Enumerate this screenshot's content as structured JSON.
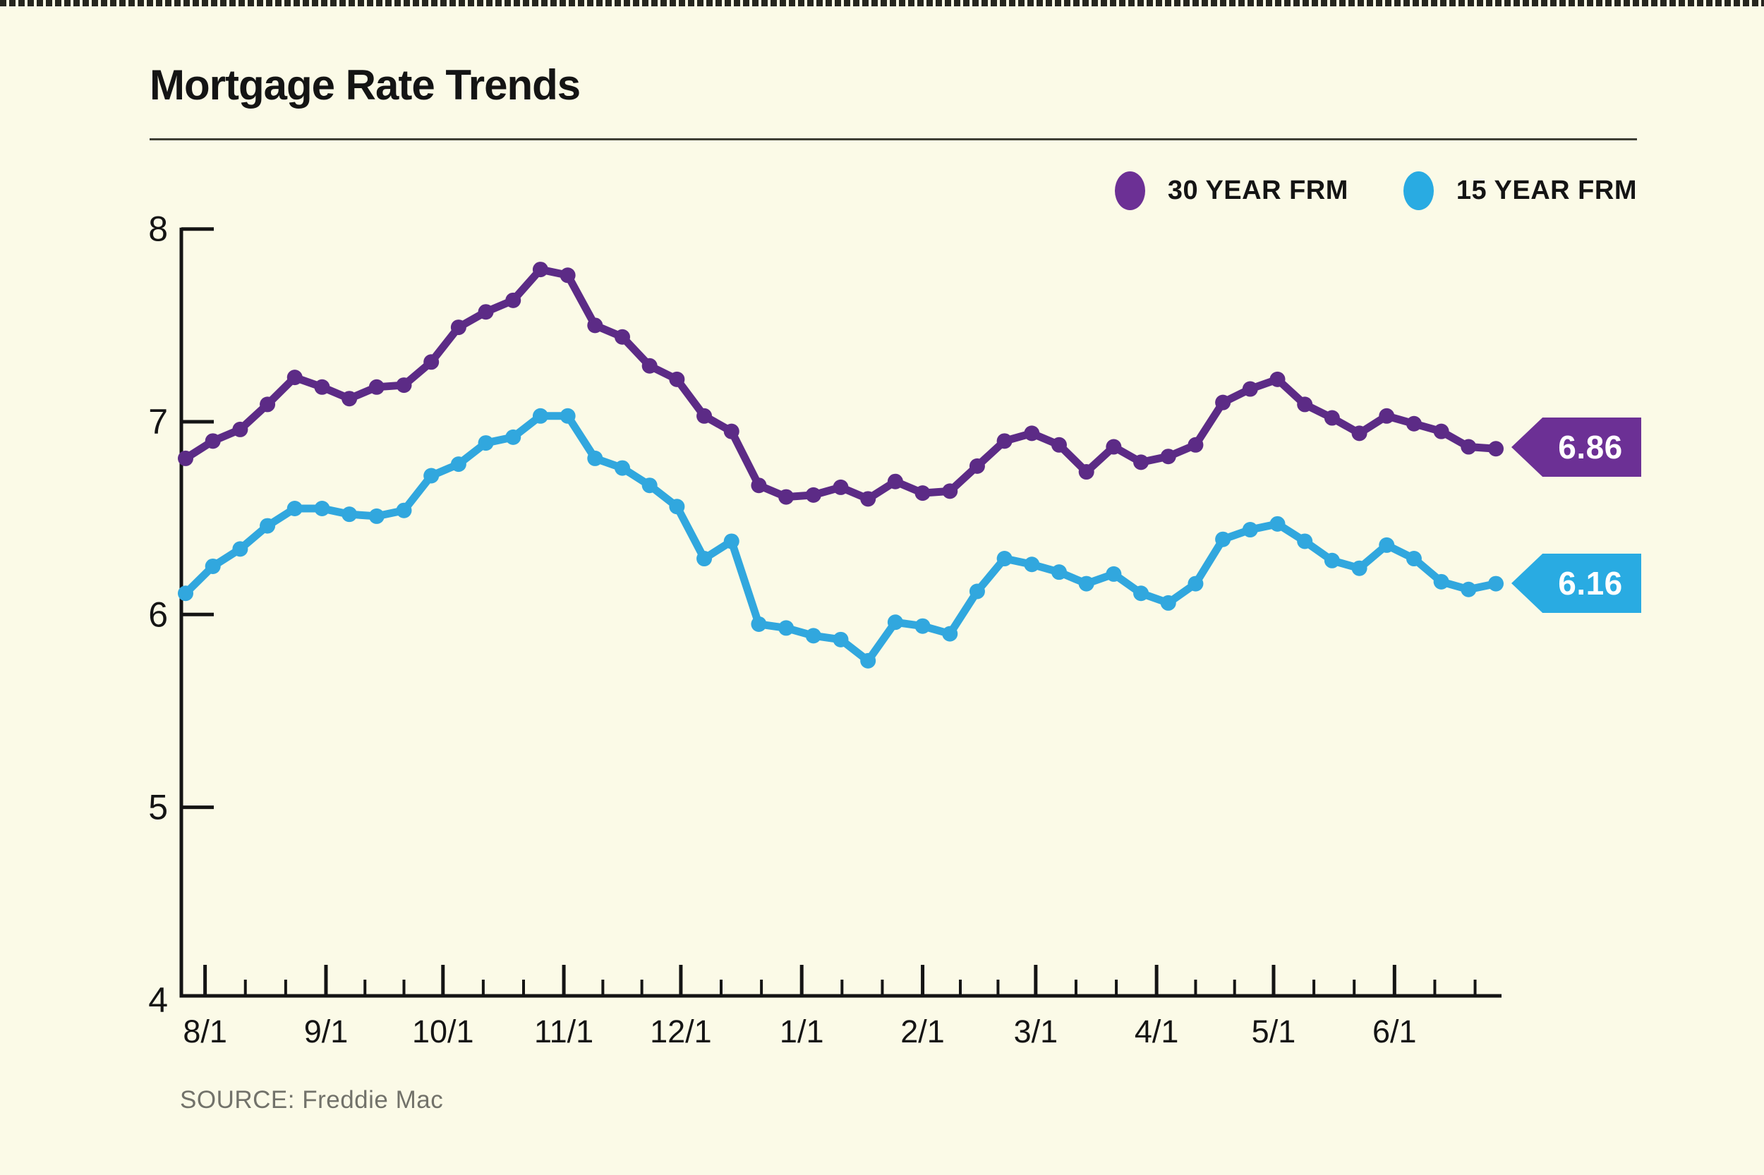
{
  "page": {
    "background_color": "#fbfae7"
  },
  "header": {
    "title": "Mortgage Rate Trends"
  },
  "legend": {
    "items": [
      {
        "label": "30 YEAR FRM",
        "color": "#6c3095"
      },
      {
        "label": "15 YEAR FRM",
        "color": "#29abe2"
      }
    ]
  },
  "callouts": [
    {
      "label": "6.86",
      "color": "#6c3095"
    },
    {
      "label": "6.16",
      "color": "#29abe2"
    }
  ],
  "source": "SOURCE: Freddie Mac",
  "chart_data": {
    "type": "line",
    "title": "Mortgage Rate Trends",
    "xlabel": "",
    "ylabel": "",
    "ylim": [
      4,
      8
    ],
    "grid": false,
    "legend_position": "top-right",
    "y_tick_labels": [
      "8",
      "7",
      "6",
      "5",
      "4"
    ],
    "y_tick_values": [
      8,
      7,
      6,
      5,
      4
    ],
    "x_tick_labels": [
      "8/1",
      "9/1",
      "10/1",
      "11/1",
      "12/1",
      "1/1",
      "2/1",
      "3/1",
      "4/1",
      "5/1",
      "6/1"
    ],
    "x_tick_week_offsets": [
      0.714,
      5.143,
      9.429,
      13.857,
      18.143,
      22.571,
      27.0,
      31.143,
      35.571,
      39.857,
      44.286
    ],
    "x_unit": "weekly observations, late July through late June",
    "series": [
      {
        "name": "30 YEAR FRM",
        "color": "#5c2b86",
        "end_label": "6.86",
        "values": [
          6.81,
          6.9,
          6.96,
          7.09,
          7.23,
          7.18,
          7.12,
          7.18,
          7.19,
          7.31,
          7.49,
          7.57,
          7.63,
          7.79,
          7.76,
          7.5,
          7.44,
          7.29,
          7.22,
          7.03,
          6.95,
          6.67,
          6.61,
          6.62,
          6.66,
          6.6,
          6.69,
          6.63,
          6.64,
          6.77,
          6.9,
          6.94,
          6.88,
          6.74,
          6.87,
          6.79,
          6.82,
          6.88,
          7.1,
          7.17,
          7.22,
          7.09,
          7.02,
          6.94,
          7.03,
          6.99,
          6.95,
          6.87,
          6.86
        ]
      },
      {
        "name": "15 YEAR FRM",
        "color": "#31a7de",
        "end_label": "6.16",
        "values": [
          6.11,
          6.25,
          6.34,
          6.46,
          6.55,
          6.55,
          6.52,
          6.51,
          6.54,
          6.72,
          6.78,
          6.89,
          6.92,
          7.03,
          7.03,
          6.81,
          6.76,
          6.67,
          6.56,
          6.29,
          6.38,
          5.95,
          5.93,
          5.89,
          5.87,
          5.76,
          5.96,
          5.94,
          5.9,
          6.12,
          6.29,
          6.26,
          6.22,
          6.16,
          6.21,
          6.11,
          6.06,
          6.16,
          6.39,
          6.44,
          6.47,
          6.38,
          6.28,
          6.24,
          6.36,
          6.29,
          6.17,
          6.13,
          6.16
        ]
      }
    ]
  }
}
